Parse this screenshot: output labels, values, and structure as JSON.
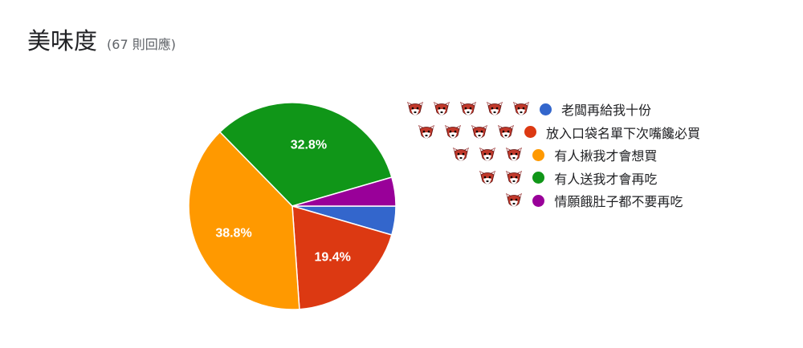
{
  "header": {
    "title": "美味度",
    "subtitle": "(67 則回應)"
  },
  "chart_data": {
    "type": "pie",
    "categories": [
      "老闆再給我十份",
      "放入口袋名單下次嘴饞必買",
      "有人揪我才會想買",
      "有人送我才會再吃",
      "情願餓肚子都不要再吃"
    ],
    "values": [
      4.5,
      19.4,
      38.8,
      32.8,
      4.5
    ],
    "value_labels": [
      "",
      "19.4%",
      "38.8%",
      "32.8%",
      ""
    ],
    "colors": [
      "#3366cc",
      "#dc3912",
      "#ff9900",
      "#109618",
      "#990099"
    ],
    "legend_position": "right",
    "legend_icon_counts": [
      5,
      4,
      3,
      2,
      1
    ],
    "legend_icon": "fox-face-icon"
  }
}
